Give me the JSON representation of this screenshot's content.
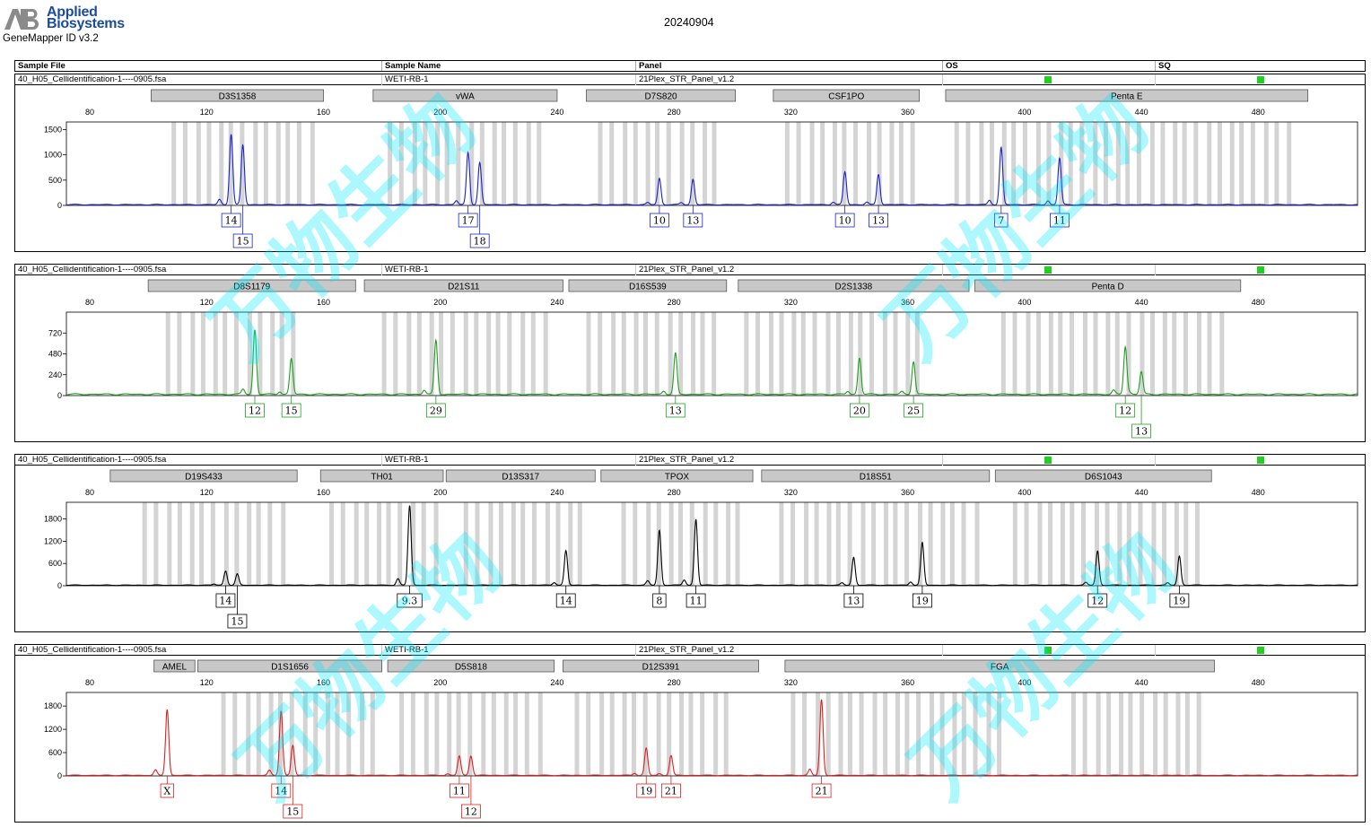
{
  "header": {
    "brand_line1": "Applied",
    "brand_line2": "Biosystems",
    "software": "GeneMapper ID v3.2",
    "date": "20240904"
  },
  "columns": [
    "Sample File",
    "Sample Name",
    "Panel",
    "OS",
    "SQ"
  ],
  "watermark": "万物生物",
  "colors": {
    "blue": "#1a23c8",
    "green": "#1fa01f",
    "black": "#000000",
    "red": "#dd1f1f",
    "qc": "#1ed21e",
    "bin": "#d4d4d4",
    "marker": "#c8c8c8"
  },
  "chart_data": [
    {
      "type": "line",
      "sample_file": "40_H05_Cellidentification-1----0905.fsa",
      "sample_name": "WETI-RB-1",
      "panel": "21Plex_STR_Panel_v1.2",
      "color": "#1a23c8",
      "x_ticks": [
        80,
        120,
        160,
        200,
        240,
        280,
        320,
        360,
        400,
        440,
        480
      ],
      "xlim": [
        72,
        514
      ],
      "y_ticks": [
        0,
        500,
        1000,
        1500
      ],
      "ylim": [
        0,
        1650
      ],
      "markers": [
        {
          "name": "D3S1358",
          "range": [
            101,
            160
          ]
        },
        {
          "name": "vWA",
          "range": [
            177,
            240
          ]
        },
        {
          "name": "D7S820",
          "range": [
            250,
            301
          ]
        },
        {
          "name": "CSF1PO",
          "range": [
            314,
            364
          ]
        },
        {
          "name": "Penta E",
          "range": [
            373,
            497
          ]
        }
      ],
      "bin_ranges": [
        [
          108,
          158
        ],
        [
          182,
          236
        ],
        [
          254,
          296
        ],
        [
          318,
          362
        ],
        [
          376,
          490
        ]
      ],
      "peaks": [
        {
          "x": 128.4,
          "height": 1300,
          "label": [
            "14"
          ],
          "row": 0
        },
        {
          "x": 132.4,
          "height": 1180,
          "label": [
            "15"
          ],
          "row": 1
        },
        {
          "x": 209.5,
          "height": 970,
          "label": [
            "17"
          ],
          "row": 0
        },
        {
          "x": 213.5,
          "height": 830,
          "label": [
            "18"
          ],
          "row": 1
        },
        {
          "x": 275.0,
          "height": 520,
          "label": [
            "10"
          ],
          "row": 0
        },
        {
          "x": 286.5,
          "height": 500,
          "label": [
            "13"
          ],
          "row": 0
        },
        {
          "x": 338.5,
          "height": 650,
          "label": [
            "10"
          ],
          "row": 0
        },
        {
          "x": 350.0,
          "height": 600,
          "label": [
            "13"
          ],
          "row": 0
        },
        {
          "x": 392.0,
          "height": 1130,
          "label": [
            "7"
          ],
          "row": 0
        },
        {
          "x": 412.0,
          "height": 920,
          "label": [
            "11"
          ],
          "row": 0
        }
      ]
    },
    {
      "type": "line",
      "sample_file": "40_H05_Cellidentification-1----0905.fsa",
      "sample_name": "WETI-RB-1",
      "panel": "21Plex_STR_Panel_v1.2",
      "color": "#1fa01f",
      "x_ticks": [
        80,
        120,
        160,
        200,
        240,
        280,
        320,
        360,
        400,
        440,
        480
      ],
      "xlim": [
        72,
        514
      ],
      "y_ticks": [
        0,
        240,
        480,
        720
      ],
      "ylim": [
        0,
        960
      ],
      "markers": [
        {
          "name": "D8S1179",
          "range": [
            100,
            171
          ]
        },
        {
          "name": "D21S11",
          "range": [
            174,
            242
          ]
        },
        {
          "name": "D16S539",
          "range": [
            244,
            298
          ]
        },
        {
          "name": "D2S1338",
          "range": [
            302,
            381
          ]
        },
        {
          "name": "Penta D",
          "range": [
            383,
            474
          ]
        }
      ],
      "bin_ranges": [
        [
          106,
          152
        ],
        [
          180,
          238
        ],
        [
          250,
          296
        ],
        [
          304,
          364
        ],
        [
          392,
          468
        ]
      ],
      "peaks": [
        {
          "x": 136.5,
          "height": 740,
          "label": [
            "12"
          ],
          "row": 0
        },
        {
          "x": 149.0,
          "height": 410,
          "label": [
            "15"
          ],
          "row": 0
        },
        {
          "x": 198.5,
          "height": 620,
          "label": [
            "29"
          ],
          "row": 0
        },
        {
          "x": 280.5,
          "height": 470,
          "label": [
            "13"
          ],
          "row": 0
        },
        {
          "x": 343.5,
          "height": 420,
          "label": [
            "20"
          ],
          "row": 0
        },
        {
          "x": 362.0,
          "height": 380,
          "label": [
            "25"
          ],
          "row": 0
        },
        {
          "x": 434.5,
          "height": 550,
          "label": [
            "12"
          ],
          "row": 0
        },
        {
          "x": 440.0,
          "height": 260,
          "label": [
            "13"
          ],
          "row": 1
        }
      ]
    },
    {
      "type": "line",
      "sample_file": "40_H05_Cellidentification-1----0905.fsa",
      "sample_name": "WETI-RB-1",
      "panel": "21Plex_STR_Panel_v1.2",
      "color": "#000000",
      "x_ticks": [
        80,
        120,
        160,
        200,
        240,
        280,
        320,
        360,
        400,
        440,
        480
      ],
      "xlim": [
        72,
        514
      ],
      "y_ticks": [
        0,
        600,
        1200,
        1800
      ],
      "ylim": [
        0,
        2250
      ],
      "markers": [
        {
          "name": "D19S433",
          "range": [
            87,
            151
          ]
        },
        {
          "name": "TH01",
          "range": [
            159,
            201
          ]
        },
        {
          "name": "D13S317",
          "range": [
            202,
            253
          ]
        },
        {
          "name": "TPOX",
          "range": [
            255,
            307
          ]
        },
        {
          "name": "D18S51",
          "range": [
            310,
            388
          ]
        },
        {
          "name": "D6S1043",
          "range": [
            390,
            464
          ]
        }
      ],
      "bin_ranges": [
        [
          98,
          146
        ],
        [
          162,
          200
        ],
        [
          208,
          250
        ],
        [
          262,
          304
        ],
        [
          316,
          386
        ],
        [
          396,
          462
        ]
      ],
      "peaks": [
        {
          "x": 126.5,
          "height": 360,
          "label": [
            "14"
          ],
          "row": 0
        },
        {
          "x": 130.5,
          "height": 300,
          "label": [
            "15"
          ],
          "row": 1
        },
        {
          "x": 189.5,
          "height": 2150,
          "label": [
            "9.3"
          ],
          "row": 0
        },
        {
          "x": 243.0,
          "height": 930,
          "label": [
            "14"
          ],
          "row": 0
        },
        {
          "x": 275.0,
          "height": 1480,
          "label": [
            "8"
          ],
          "row": 0
        },
        {
          "x": 287.5,
          "height": 1780,
          "label": [
            "11"
          ],
          "row": 0
        },
        {
          "x": 341.5,
          "height": 750,
          "label": [
            "13"
          ],
          "row": 0
        },
        {
          "x": 365.0,
          "height": 1150,
          "label": [
            "19"
          ],
          "row": 0
        },
        {
          "x": 425.0,
          "height": 920,
          "label": [
            "12"
          ],
          "row": 0
        },
        {
          "x": 453.0,
          "height": 780,
          "label": [
            "19"
          ],
          "row": 0
        }
      ]
    },
    {
      "type": "line",
      "sample_file": "40_H05_Cellidentification-1----0905.fsa",
      "sample_name": "WETI-RB-1",
      "panel": "21Plex_STR_Panel_v1.2",
      "color": "#dd1f1f",
      "x_ticks": [
        80,
        120,
        160,
        200,
        240,
        280,
        320,
        360,
        400,
        440,
        480
      ],
      "xlim": [
        72,
        514
      ],
      "y_ticks": [
        0,
        600,
        1200,
        1800
      ],
      "ylim": [
        0,
        2150
      ],
      "markers": [
        {
          "name": "AMEL",
          "range": [
            102,
            116
          ]
        },
        {
          "name": "D1S1656",
          "range": [
            117,
            180
          ]
        },
        {
          "name": "D5S818",
          "range": [
            182,
            239
          ]
        },
        {
          "name": "D12S391",
          "range": [
            242,
            309
          ]
        },
        {
          "name": "FGA",
          "range": [
            318,
            465
          ]
        }
      ],
      "bin_ranges": [
        [
          125,
          178
        ],
        [
          186,
          236
        ],
        [
          246,
          300
        ],
        [
          320,
          392
        ],
        [
          416,
          460
        ]
      ],
      "peaks": [
        {
          "x": 106.5,
          "height": 1700,
          "label": [
            "X"
          ],
          "row": 0
        },
        {
          "x": 145.5,
          "height": 1600,
          "label": [
            "14"
          ],
          "row": 0
        },
        {
          "x": 149.5,
          "height": 770,
          "label": [
            "15"
          ],
          "row": 1
        },
        {
          "x": 206.5,
          "height": 460,
          "label": [
            "11"
          ],
          "row": 0
        },
        {
          "x": 210.5,
          "height": 500,
          "label": [
            "12"
          ],
          "row": 1
        },
        {
          "x": 270.5,
          "height": 700,
          "label": [
            "19"
          ],
          "row": 0
        },
        {
          "x": 279.0,
          "height": 510,
          "label": [
            "21"
          ],
          "row": 0
        },
        {
          "x": 330.5,
          "height": 1950,
          "label": [
            "21"
          ],
          "row": 0
        }
      ]
    }
  ]
}
